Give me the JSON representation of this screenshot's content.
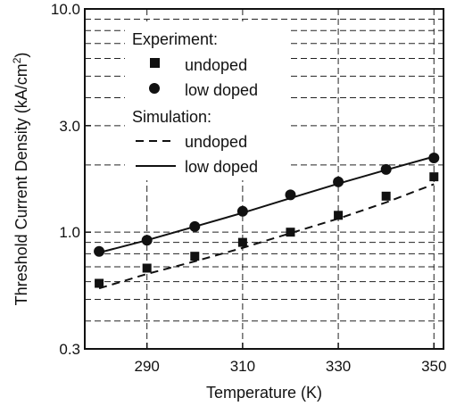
{
  "chart_data": {
    "type": "scatter",
    "xlabel": "Temperature (K)",
    "ylabel": "Threshold Current Density (kA/cm",
    "ylabel_superscript": "2",
    "ylabel_suffix": ")",
    "xlim": [
      277,
      352
    ],
    "ylim": [
      0.3,
      10.0
    ],
    "yscale": "log",
    "x_ticks": [
      290,
      310,
      330,
      350
    ],
    "y_ticks": [
      0.3,
      1.0,
      3.0,
      10.0
    ],
    "x_tick_labels": [
      "290",
      "310",
      "330",
      "350"
    ],
    "y_tick_labels": [
      "0.3",
      "1.0",
      "3.0",
      "10.0"
    ],
    "grid": true,
    "legend_position": "top-left",
    "legend": {
      "experiment_heading": "Experiment:",
      "simulation_heading": "Simulation:"
    },
    "series": [
      {
        "name": "undoped",
        "group": "experiment",
        "kind": "markers",
        "marker": "square",
        "x": [
          280,
          290,
          300,
          310,
          320,
          330,
          340,
          350
        ],
        "y": [
          0.59,
          0.69,
          0.78,
          0.9,
          1.0,
          1.19,
          1.45,
          1.77
        ]
      },
      {
        "name": "low doped",
        "group": "experiment",
        "kind": "markers",
        "marker": "circle",
        "x": [
          280,
          290,
          300,
          310,
          320,
          330,
          340,
          350
        ],
        "y": [
          0.82,
          0.92,
          1.06,
          1.24,
          1.47,
          1.68,
          1.91,
          2.15
        ]
      },
      {
        "name": "undoped",
        "group": "simulation",
        "kind": "line",
        "style": "dashed",
        "x": [
          280,
          290,
          300,
          310,
          320,
          330,
          340,
          350
        ],
        "y": [
          0.56,
          0.65,
          0.74,
          0.85,
          0.99,
          1.15,
          1.36,
          1.64
        ]
      },
      {
        "name": "low doped",
        "group": "simulation",
        "kind": "line",
        "style": "solid",
        "x": [
          280,
          290,
          300,
          310,
          320,
          330,
          340,
          350
        ],
        "y": [
          0.81,
          0.92,
          1.06,
          1.22,
          1.42,
          1.65,
          1.9,
          2.18
        ]
      }
    ]
  },
  "colors": {
    "foreground": "#111111",
    "grid": "#222222",
    "background": "#ffffff"
  }
}
